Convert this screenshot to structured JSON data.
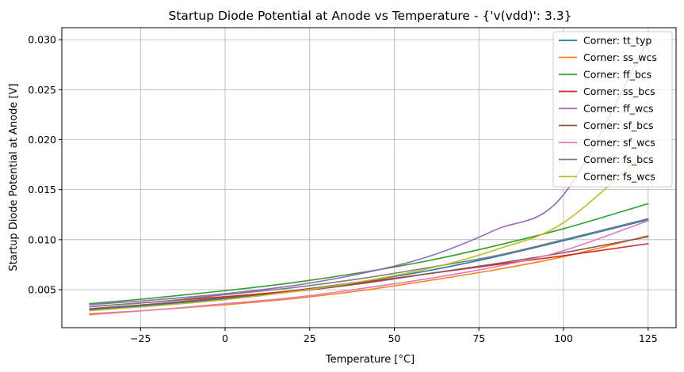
{
  "chart_data": {
    "type": "line",
    "title": "Startup Diode Potential at Anode vs Temperature - {'v(vdd)': 3.3}",
    "xlabel": "Temperature [°C]",
    "ylabel": "Startup Diode Potential at Anode [V]",
    "xlim": [
      -48.25,
      133.25
    ],
    "ylim": [
      0.0012,
      0.0312
    ],
    "xticks": [
      -25,
      0,
      25,
      50,
      75,
      100,
      125
    ],
    "xtick_labels": [
      "−25",
      "0",
      "25",
      "50",
      "75",
      "100",
      "125"
    ],
    "yticks": [
      0.005,
      0.01,
      0.015,
      0.02,
      0.025,
      0.03
    ],
    "ytick_labels": [
      "0.005",
      "0.010",
      "0.015",
      "0.020",
      "0.025",
      "0.030"
    ],
    "grid": true,
    "legend_position": "top-right",
    "x": [
      -40,
      -20,
      0,
      20,
      40,
      60,
      80,
      100,
      125
    ],
    "series": [
      {
        "name": "Corner: tt_typ",
        "color": "#1f77b4",
        "values": [
          0.003,
          0.0035,
          0.0041,
          0.0049,
          0.0058,
          0.0069,
          0.0083,
          0.0099,
          0.012
        ]
      },
      {
        "name": "Corner: ss_wcs",
        "color": "#ff7f0e",
        "values": [
          0.0025,
          0.003,
          0.0035,
          0.0041,
          0.0049,
          0.0059,
          0.007,
          0.0083,
          0.0104
        ]
      },
      {
        "name": "Corner: ff_bcs",
        "color": "#2ca02c",
        "values": [
          0.0036,
          0.0042,
          0.0049,
          0.0057,
          0.0067,
          0.0079,
          0.0094,
          0.0111,
          0.0136
        ]
      },
      {
        "name": "Corner: ss_bcs",
        "color": "#d62728",
        "values": [
          0.0033,
          0.0038,
          0.0043,
          0.0049,
          0.0057,
          0.0066,
          0.0075,
          0.0084,
          0.0096
        ]
      },
      {
        "name": "Corner: ff_wcs",
        "color": "#9467bd",
        "values": [
          0.0035,
          0.004,
          0.0046,
          0.0054,
          0.0066,
          0.0083,
          0.011,
          0.0145,
          0.03
        ]
      },
      {
        "name": "Corner: sf_bcs",
        "color": "#8c564b",
        "values": [
          0.0031,
          0.0036,
          0.0042,
          0.0048,
          0.0056,
          0.0066,
          0.0076,
          0.0087,
          0.0103
        ]
      },
      {
        "name": "Corner: sf_wcs",
        "color": "#e377c2",
        "values": [
          0.0026,
          0.003,
          0.0036,
          0.0042,
          0.0051,
          0.0061,
          0.0073,
          0.0089,
          0.0119
        ]
      },
      {
        "name": "Corner: fs_bcs",
        "color": "#7f7f7f",
        "values": [
          0.0033,
          0.0038,
          0.0045,
          0.0052,
          0.0061,
          0.0072,
          0.0084,
          0.01,
          0.0121
        ]
      },
      {
        "name": "Corner: fs_wcs",
        "color": "#bcbd22",
        "values": [
          0.0029,
          0.0034,
          0.004,
          0.0048,
          0.0058,
          0.0071,
          0.009,
          0.0117,
          0.019
        ]
      }
    ]
  }
}
